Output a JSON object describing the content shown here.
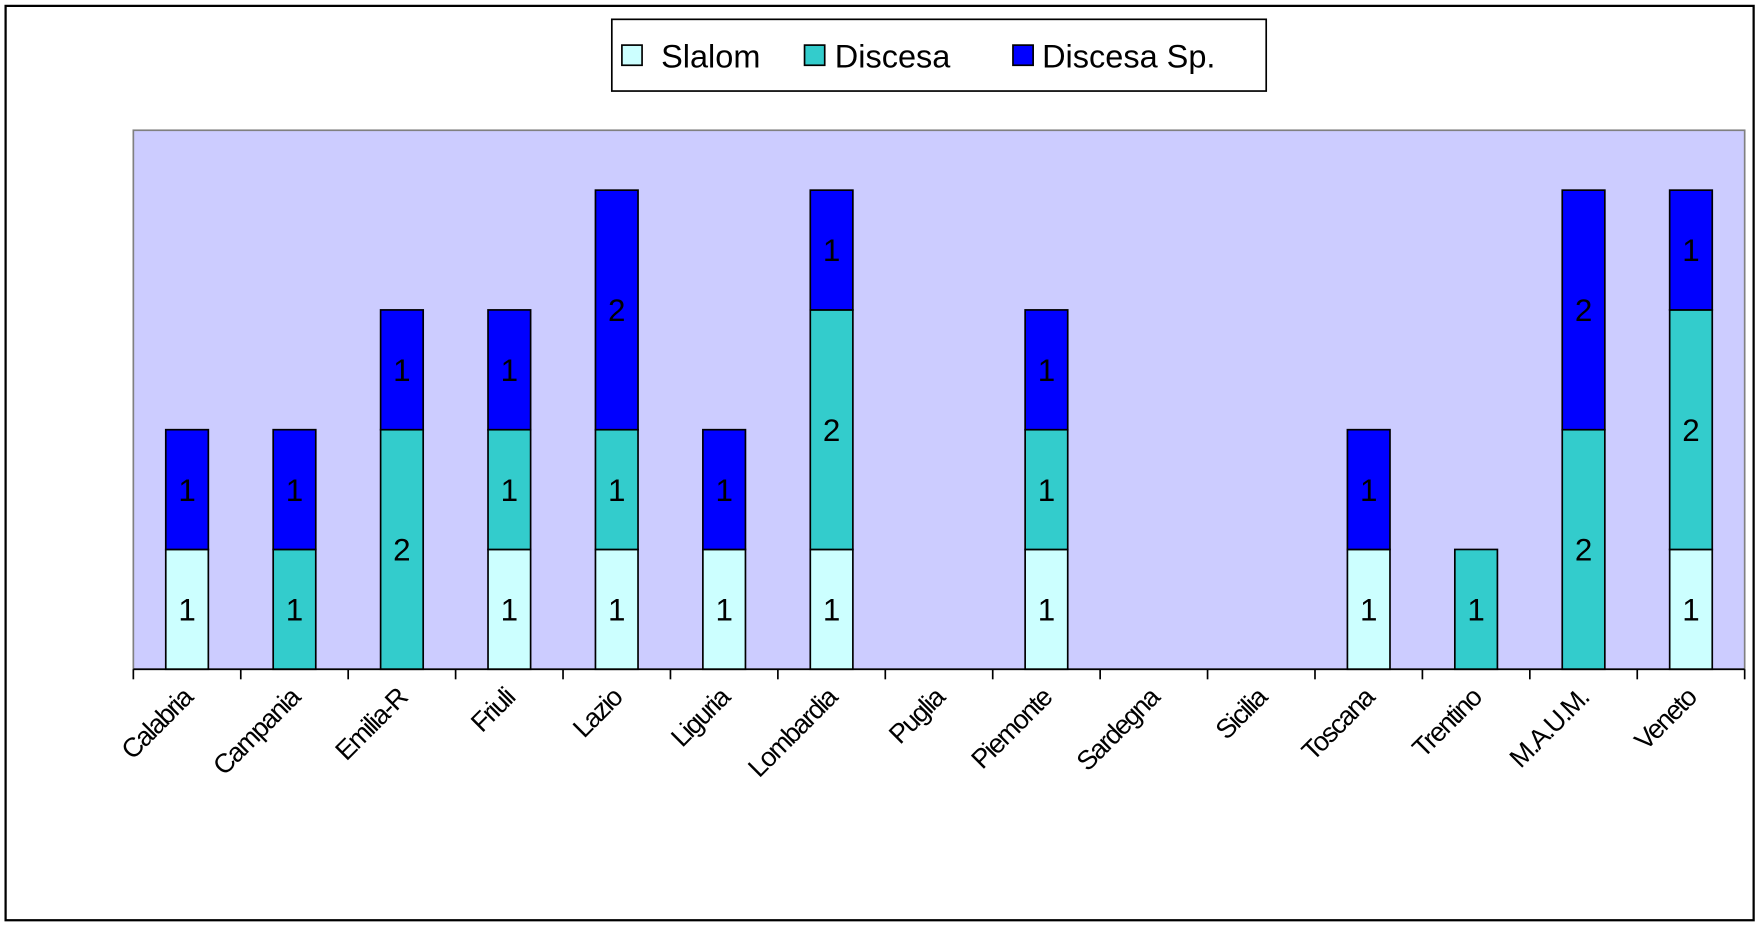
{
  "chart_data": {
    "type": "stacked_bar",
    "categories": [
      "Calabria",
      "Campania",
      "Emilia-R",
      "Friuli",
      "Lazio",
      "Liguria",
      "Lombardia",
      "Puglia",
      "Piemonte",
      "Sardegna",
      "Sicilia",
      "Toscana",
      "Trentino",
      "M.A.U.M.",
      "Veneto"
    ],
    "series": [
      {
        "name": "Slalom",
        "color": "#ccffff",
        "values": [
          1,
          null,
          null,
          1,
          1,
          1,
          1,
          null,
          1,
          null,
          null,
          1,
          null,
          null,
          1
        ]
      },
      {
        "name": "Discesa",
        "color": "#33cccc",
        "values": [
          null,
          1,
          2,
          1,
          1,
          null,
          2,
          null,
          1,
          null,
          null,
          null,
          1,
          2,
          2
        ]
      },
      {
        "name": "Discesa Sp.",
        "color": "#0000ff",
        "values": [
          1,
          1,
          1,
          1,
          2,
          1,
          1,
          null,
          1,
          null,
          null,
          1,
          null,
          2,
          1
        ]
      }
    ],
    "ylim": [
      0,
      4.5
    ],
    "legend": "top",
    "plot_background": "#ccccff"
  }
}
